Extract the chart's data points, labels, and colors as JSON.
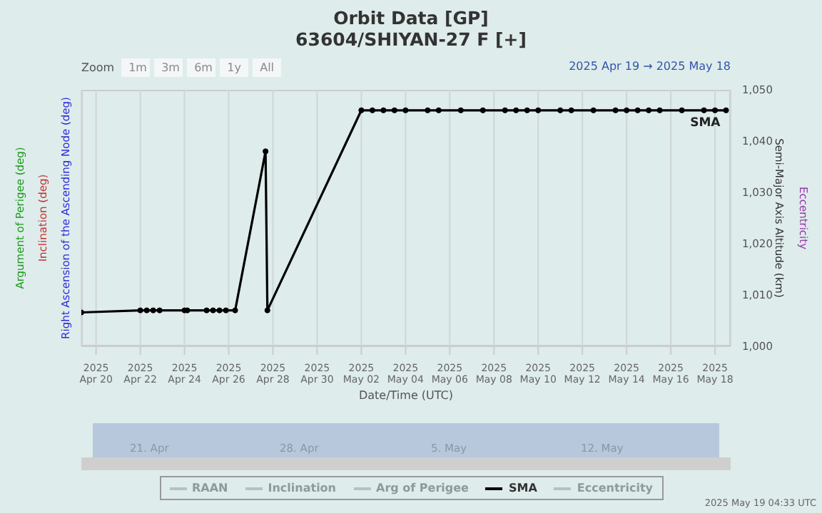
{
  "chart_data": {
    "type": "line",
    "title": "Orbit Data [GP]",
    "subtitle": "63604/SHIYAN-27 F [+]",
    "xlabel": "Date/Time (UTC)",
    "ylabel": "Right Ascension of the Ascending Node (deg)",
    "y2label": "Semi-Major Axis Altitude (km)",
    "x": [
      "2025-04-19T08:00",
      "2025-04-22T00:00",
      "2025-04-22T07:00",
      "2025-04-22T14:00",
      "2025-04-22T21:00",
      "2025-04-24T00:00",
      "2025-04-24T03:00",
      "2025-04-25T00:00",
      "2025-04-25T07:00",
      "2025-04-25T14:00",
      "2025-04-25T21:00",
      "2025-04-26T07:00",
      "2025-04-27T16:00",
      "2025-04-27T18:00",
      "2025-05-02T00:00",
      "2025-05-02T12:00",
      "2025-05-03T00:00",
      "2025-05-03T12:00",
      "2025-05-04T00:00",
      "2025-05-05T00:00",
      "2025-05-05T12:00",
      "2025-05-06T12:00",
      "2025-05-07T12:00",
      "2025-05-08T12:00",
      "2025-05-09T00:00",
      "2025-05-09T12:00",
      "2025-05-10T00:00",
      "2025-05-11T00:00",
      "2025-05-11T12:00",
      "2025-05-12T12:00",
      "2025-05-13T12:00",
      "2025-05-14T00:00",
      "2025-05-14T12:00",
      "2025-05-15T00:00",
      "2025-05-15T12:00",
      "2025-05-16T12:00",
      "2025-05-17T12:00",
      "2025-05-18T00:00",
      "2025-05-18T12:00"
    ],
    "series": [
      {
        "name": "SMA",
        "color": "#000000",
        "axis": "y2",
        "values": [
          1006.6,
          1007,
          1007,
          1007,
          1007,
          1007,
          1007,
          1007,
          1007,
          1007,
          1007,
          1007,
          1038,
          1007,
          1046,
          1046,
          1046,
          1046,
          1046,
          1046,
          1046,
          1046,
          1046,
          1046,
          1046,
          1046,
          1046,
          1046,
          1046,
          1046,
          1046,
          1046,
          1046,
          1046,
          1046,
          1046,
          1046,
          1046,
          1046
        ]
      }
    ],
    "xlim": [
      "2025-04-19T08:00",
      "2025-05-18T17:00"
    ],
    "xticks": [
      {
        "value": "2025-04-20",
        "label": "2025 Apr 20"
      },
      {
        "value": "2025-04-22",
        "label": "2025 Apr 22"
      },
      {
        "value": "2025-04-24",
        "label": "2025 Apr 24"
      },
      {
        "value": "2025-04-26",
        "label": "2025 Apr 26"
      },
      {
        "value": "2025-04-28",
        "label": "2025 Apr 28"
      },
      {
        "value": "2025-04-30",
        "label": "2025 Apr 30"
      },
      {
        "value": "2025-05-02",
        "label": "2025 May 02"
      },
      {
        "value": "2025-05-04",
        "label": "2025 May 04"
      },
      {
        "value": "2025-05-06",
        "label": "2025 May 06"
      },
      {
        "value": "2025-05-08",
        "label": "2025 May 08"
      },
      {
        "value": "2025-05-10",
        "label": "2025 May 10"
      },
      {
        "value": "2025-05-12",
        "label": "2025 May 12"
      },
      {
        "value": "2025-05-14",
        "label": "2025 May 14"
      },
      {
        "value": "2025-05-16",
        "label": "2025 May 16"
      },
      {
        "value": "2025-05-18",
        "label": "2025 May 18"
      }
    ],
    "y2lim": [
      1000,
      1050
    ],
    "y2ticks": [
      {
        "value": 1000,
        "label": "1,000"
      },
      {
        "value": 1010,
        "label": "1,010"
      },
      {
        "value": 1020,
        "label": "1,020"
      },
      {
        "value": 1030,
        "label": "1,030"
      },
      {
        "value": 1040,
        "label": "1,040"
      },
      {
        "value": 1050,
        "label": "1,050"
      }
    ],
    "grid": "x",
    "legend": "bottom",
    "marker": "circle",
    "line_style": "solid",
    "annotations": [
      "Zoom",
      "1m",
      "3m",
      "6m",
      "1y",
      "All",
      "2025 Apr 19 → 2025 May 18",
      "21. Apr",
      "28. Apr",
      "5. May",
      "12. May",
      "2025 May 19 04:33 UTC",
      "Inclination (deg)",
      "Argument of Perigee (deg)",
      "Eccentricity",
      "RAAN",
      "Inclination",
      "Arg of Perigee",
      "Eccentricity"
    ]
  }
}
